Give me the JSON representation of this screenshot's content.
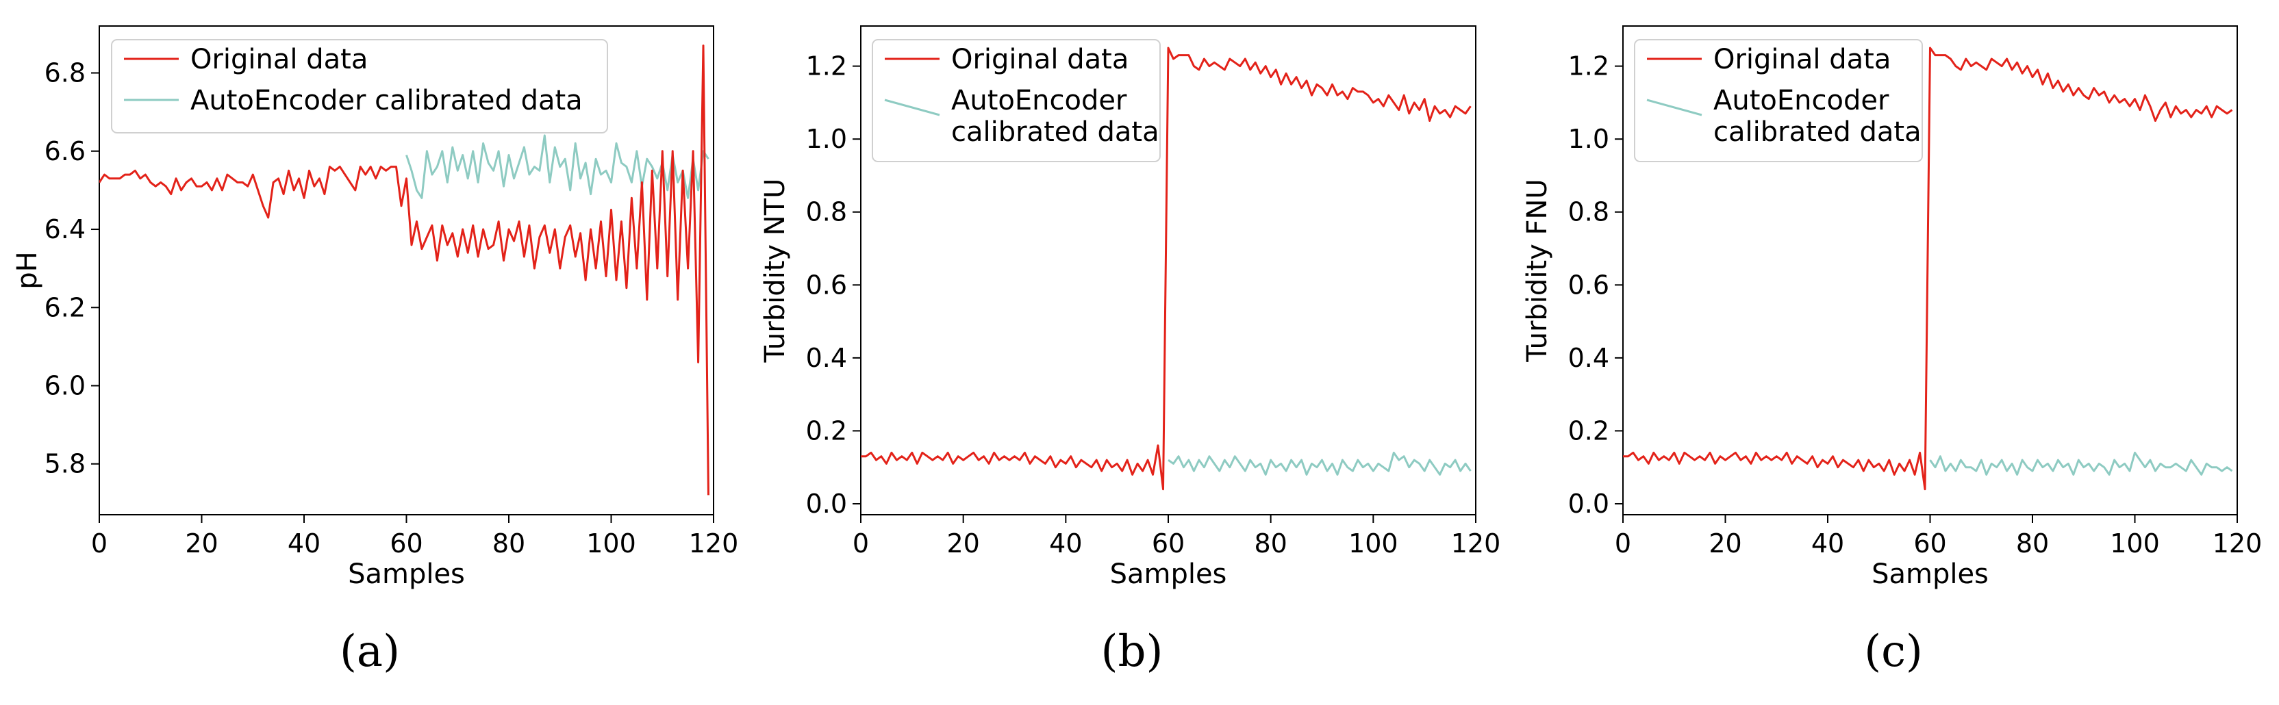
{
  "chart_data": [
    {
      "type": "line",
      "panel_label": "(a)",
      "xlabel": "Samples",
      "ylabel": "pH",
      "xlim": [
        0,
        120
      ],
      "ylim": [
        5.67,
        6.92
      ],
      "xticks": [
        "0",
        "20",
        "40",
        "60",
        "80",
        "100",
        "120"
      ],
      "yticks": [
        "5.8",
        "6.0",
        "6.2",
        "6.4",
        "6.6",
        "6.8"
      ],
      "legend_position": "top-left",
      "series": [
        {
          "name": "Original data",
          "color": "#e32219",
          "x_start": 0,
          "values": [
            6.52,
            6.54,
            6.53,
            6.53,
            6.53,
            6.54,
            6.54,
            6.55,
            6.53,
            6.54,
            6.52,
            6.51,
            6.52,
            6.51,
            6.49,
            6.53,
            6.5,
            6.52,
            6.53,
            6.51,
            6.51,
            6.52,
            6.5,
            6.53,
            6.5,
            6.54,
            6.53,
            6.52,
            6.52,
            6.51,
            6.54,
            6.5,
            6.46,
            6.43,
            6.52,
            6.53,
            6.49,
            6.55,
            6.5,
            6.53,
            6.48,
            6.55,
            6.51,
            6.53,
            6.49,
            6.56,
            6.55,
            6.56,
            6.54,
            6.52,
            6.5,
            6.56,
            6.54,
            6.56,
            6.53,
            6.56,
            6.55,
            6.56,
            6.56,
            6.46,
            6.53,
            6.36,
            6.42,
            6.35,
            6.38,
            6.41,
            6.32,
            6.41,
            6.36,
            6.39,
            6.33,
            6.4,
            6.34,
            6.41,
            6.33,
            6.4,
            6.35,
            6.36,
            6.42,
            6.32,
            6.4,
            6.37,
            6.42,
            6.33,
            6.41,
            6.3,
            6.38,
            6.41,
            6.34,
            6.4,
            6.3,
            6.38,
            6.41,
            6.33,
            6.39,
            6.27,
            6.4,
            6.3,
            6.42,
            6.28,
            6.45,
            6.27,
            6.42,
            6.25,
            6.48,
            6.3,
            6.52,
            6.22,
            6.55,
            6.3,
            6.6,
            6.28,
            6.6,
            6.22,
            6.55,
            6.3,
            6.6,
            6.06,
            6.87,
            5.72
          ]
        },
        {
          "name": "AutoEncoder calibrated data",
          "color": "#8ecbc2",
          "x_start": 60,
          "values": [
            6.59,
            6.55,
            6.5,
            6.48,
            6.6,
            6.54,
            6.56,
            6.6,
            6.52,
            6.61,
            6.55,
            6.59,
            6.53,
            6.6,
            6.52,
            6.62,
            6.57,
            6.55,
            6.6,
            6.51,
            6.59,
            6.53,
            6.57,
            6.61,
            6.54,
            6.56,
            6.55,
            6.64,
            6.52,
            6.61,
            6.56,
            6.58,
            6.5,
            6.62,
            6.53,
            6.57,
            6.49,
            6.58,
            6.54,
            6.55,
            6.52,
            6.62,
            6.57,
            6.56,
            6.52,
            6.6,
            6.51,
            6.58,
            6.56,
            6.53,
            6.57,
            6.5,
            6.59,
            6.52,
            6.55,
            6.48,
            6.58,
            6.5,
            6.6,
            6.58
          ]
        }
      ]
    },
    {
      "type": "line",
      "panel_label": "(b)",
      "xlabel": "Samples",
      "ylabel": "Turbidity NTU",
      "xlim": [
        0,
        120
      ],
      "ylim": [
        -0.03,
        1.31
      ],
      "xticks": [
        "0",
        "20",
        "40",
        "60",
        "80",
        "100",
        "120"
      ],
      "yticks": [
        "0.0",
        "0.2",
        "0.4",
        "0.6",
        "0.8",
        "1.0",
        "1.2"
      ],
      "legend_position": "top-left",
      "series": [
        {
          "name": "Original data",
          "color": "#e32219",
          "x_start": 0,
          "values": [
            0.13,
            0.13,
            0.14,
            0.12,
            0.13,
            0.11,
            0.14,
            0.12,
            0.13,
            0.12,
            0.14,
            0.11,
            0.14,
            0.13,
            0.12,
            0.13,
            0.12,
            0.14,
            0.11,
            0.13,
            0.12,
            0.13,
            0.14,
            0.12,
            0.13,
            0.11,
            0.14,
            0.12,
            0.13,
            0.12,
            0.13,
            0.12,
            0.14,
            0.11,
            0.13,
            0.12,
            0.11,
            0.13,
            0.1,
            0.12,
            0.11,
            0.13,
            0.1,
            0.12,
            0.11,
            0.1,
            0.12,
            0.09,
            0.12,
            0.1,
            0.11,
            0.09,
            0.12,
            0.08,
            0.11,
            0.09,
            0.12,
            0.08,
            0.16,
            0.04,
            1.25,
            1.22,
            1.23,
            1.23,
            1.23,
            1.2,
            1.19,
            1.22,
            1.2,
            1.21,
            1.2,
            1.19,
            1.22,
            1.21,
            1.2,
            1.22,
            1.19,
            1.21,
            1.18,
            1.2,
            1.17,
            1.19,
            1.15,
            1.18,
            1.15,
            1.17,
            1.14,
            1.16,
            1.12,
            1.15,
            1.14,
            1.12,
            1.15,
            1.12,
            1.13,
            1.11,
            1.14,
            1.13,
            1.13,
            1.12,
            1.1,
            1.11,
            1.09,
            1.12,
            1.1,
            1.08,
            1.12,
            1.07,
            1.1,
            1.08,
            1.11,
            1.05,
            1.09,
            1.07,
            1.08,
            1.06,
            1.09,
            1.08,
            1.07,
            1.09
          ]
        },
        {
          "name": "AutoEncoder calibrated data",
          "color": "#8ecbc2",
          "x_start": 60,
          "values": [
            0.12,
            0.11,
            0.13,
            0.1,
            0.12,
            0.09,
            0.12,
            0.1,
            0.13,
            0.11,
            0.09,
            0.12,
            0.1,
            0.13,
            0.11,
            0.09,
            0.12,
            0.1,
            0.11,
            0.08,
            0.12,
            0.1,
            0.11,
            0.09,
            0.12,
            0.1,
            0.12,
            0.08,
            0.11,
            0.1,
            0.12,
            0.09,
            0.11,
            0.08,
            0.12,
            0.1,
            0.09,
            0.12,
            0.1,
            0.11,
            0.09,
            0.11,
            0.1,
            0.09,
            0.14,
            0.12,
            0.13,
            0.1,
            0.12,
            0.11,
            0.09,
            0.12,
            0.1,
            0.08,
            0.11,
            0.1,
            0.12,
            0.09,
            0.11,
            0.09
          ]
        }
      ]
    },
    {
      "type": "line",
      "panel_label": "(c)",
      "xlabel": "Samples",
      "ylabel": "Turbidity FNU",
      "xlim": [
        0,
        120
      ],
      "ylim": [
        -0.03,
        1.31
      ],
      "xticks": [
        "0",
        "20",
        "40",
        "60",
        "80",
        "100",
        "120"
      ],
      "yticks": [
        "0.0",
        "0.2",
        "0.4",
        "0.6",
        "0.8",
        "1.0",
        "1.2"
      ],
      "legend_position": "top-left",
      "series": [
        {
          "name": "Original data",
          "color": "#e32219",
          "x_start": 0,
          "values": [
            0.13,
            0.13,
            0.14,
            0.12,
            0.13,
            0.11,
            0.14,
            0.12,
            0.13,
            0.12,
            0.14,
            0.11,
            0.14,
            0.13,
            0.12,
            0.13,
            0.12,
            0.14,
            0.11,
            0.13,
            0.12,
            0.13,
            0.14,
            0.12,
            0.13,
            0.11,
            0.14,
            0.12,
            0.13,
            0.12,
            0.13,
            0.12,
            0.14,
            0.11,
            0.13,
            0.12,
            0.11,
            0.13,
            0.1,
            0.12,
            0.11,
            0.13,
            0.1,
            0.12,
            0.11,
            0.1,
            0.12,
            0.09,
            0.12,
            0.1,
            0.11,
            0.09,
            0.12,
            0.08,
            0.11,
            0.09,
            0.12,
            0.08,
            0.14,
            0.04,
            1.25,
            1.23,
            1.23,
            1.23,
            1.22,
            1.2,
            1.19,
            1.22,
            1.2,
            1.21,
            1.2,
            1.19,
            1.22,
            1.21,
            1.2,
            1.22,
            1.19,
            1.21,
            1.18,
            1.2,
            1.17,
            1.19,
            1.15,
            1.18,
            1.14,
            1.16,
            1.13,
            1.15,
            1.12,
            1.14,
            1.12,
            1.11,
            1.14,
            1.12,
            1.13,
            1.1,
            1.12,
            1.1,
            1.11,
            1.09,
            1.11,
            1.08,
            1.12,
            1.09,
            1.05,
            1.08,
            1.1,
            1.06,
            1.09,
            1.07,
            1.08,
            1.06,
            1.08,
            1.07,
            1.09,
            1.06,
            1.09,
            1.08,
            1.07,
            1.08
          ]
        },
        {
          "name": "AutoEncoder calibrated data",
          "color": "#8ecbc2",
          "x_start": 60,
          "values": [
            0.12,
            0.1,
            0.13,
            0.09,
            0.11,
            0.09,
            0.12,
            0.1,
            0.1,
            0.09,
            0.12,
            0.08,
            0.11,
            0.1,
            0.12,
            0.09,
            0.11,
            0.08,
            0.12,
            0.1,
            0.09,
            0.12,
            0.1,
            0.11,
            0.09,
            0.12,
            0.1,
            0.11,
            0.08,
            0.12,
            0.1,
            0.11,
            0.09,
            0.11,
            0.1,
            0.08,
            0.12,
            0.1,
            0.11,
            0.09,
            0.14,
            0.12,
            0.1,
            0.12,
            0.09,
            0.11,
            0.1,
            0.1,
            0.11,
            0.1,
            0.09,
            0.12,
            0.1,
            0.08,
            0.11,
            0.1,
            0.1,
            0.09,
            0.1,
            0.09
          ]
        }
      ]
    }
  ]
}
